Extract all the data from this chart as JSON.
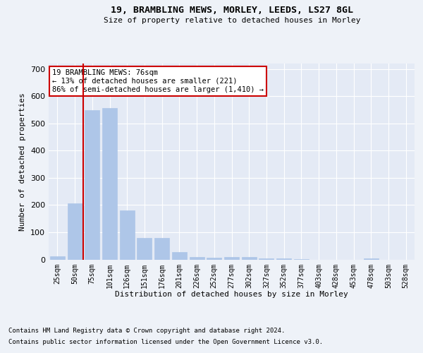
{
  "title1": "19, BRAMBLING MEWS, MORLEY, LEEDS, LS27 8GL",
  "title2": "Size of property relative to detached houses in Morley",
  "xlabel": "Distribution of detached houses by size in Morley",
  "ylabel": "Number of detached properties",
  "categories": [
    "25sqm",
    "50sqm",
    "75sqm",
    "101sqm",
    "126sqm",
    "151sqm",
    "176sqm",
    "201sqm",
    "226sqm",
    "252sqm",
    "277sqm",
    "302sqm",
    "327sqm",
    "352sqm",
    "377sqm",
    "403sqm",
    "428sqm",
    "453sqm",
    "478sqm",
    "503sqm",
    "528sqm"
  ],
  "values": [
    12,
    205,
    550,
    557,
    180,
    78,
    78,
    28,
    10,
    7,
    10,
    10,
    5,
    5,
    2,
    0,
    0,
    0,
    5,
    0,
    0
  ],
  "bar_color": "#aec6e8",
  "bar_edgecolor": "#aec6e8",
  "vline_color": "#cc0000",
  "vline_x": 1.5,
  "annotation_text": "19 BRAMBLING MEWS: 76sqm\n← 13% of detached houses are smaller (221)\n86% of semi-detached houses are larger (1,410) →",
  "annotation_box_edgecolor": "#cc0000",
  "ylim": [
    0,
    720
  ],
  "yticks": [
    0,
    100,
    200,
    300,
    400,
    500,
    600,
    700
  ],
  "footnote1": "Contains HM Land Registry data © Crown copyright and database right 2024.",
  "footnote2": "Contains public sector information licensed under the Open Government Licence v3.0.",
  "bg_color": "#eef2f8",
  "plot_bg_color": "#e4eaf5"
}
